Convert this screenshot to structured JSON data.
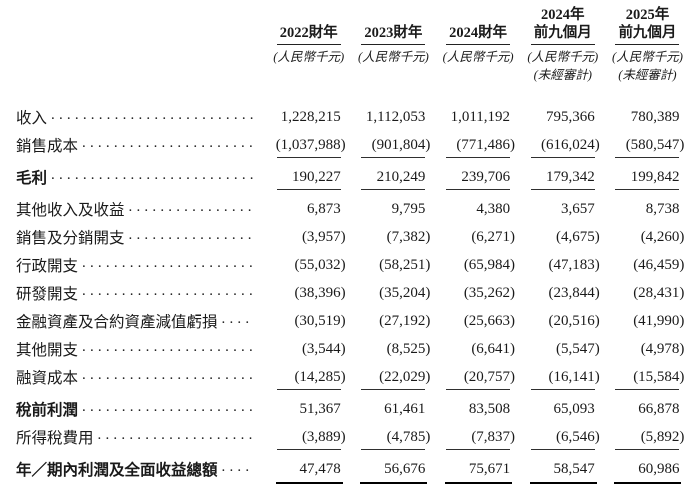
{
  "table": {
    "currency_unit_label": "(人民幣千元)",
    "unaudited_label": "(未經審計)",
    "columns": [
      {
        "period_line1": "",
        "period_line2": "2022財年",
        "unit": "(人民幣千元)",
        "note": ""
      },
      {
        "period_line1": "",
        "period_line2": "2023財年",
        "unit": "(人民幣千元)",
        "note": ""
      },
      {
        "period_line1": "",
        "period_line2": "2024財年",
        "unit": "(人民幣千元)",
        "note": ""
      },
      {
        "period_line1": "2024年",
        "period_line2": "前九個月",
        "unit": "(人民幣千元)",
        "note": "(未經審計)"
      },
      {
        "period_line1": "2025年",
        "period_line2": "前九個月",
        "unit": "(人民幣千元)",
        "note": "(未經審計)"
      }
    ],
    "rows": [
      {
        "label": "收入",
        "bold": false,
        "underline": "none",
        "values": [
          "1,228,215",
          "1,112,053",
          "1,011,192",
          "795,366",
          "780,389"
        ]
      },
      {
        "label": "銷售成本",
        "bold": false,
        "underline": "single",
        "values": [
          "(1,037,988)",
          "(901,804)",
          "(771,486)",
          "(616,024)",
          "(580,547)"
        ]
      },
      {
        "label": "毛利",
        "bold": true,
        "underline": "single",
        "values": [
          "190,227",
          "210,249",
          "239,706",
          "179,342",
          "199,842"
        ]
      },
      {
        "label": "其他收入及收益",
        "bold": false,
        "underline": "none",
        "values": [
          "6,873",
          "9,795",
          "4,380",
          "3,657",
          "8,738"
        ]
      },
      {
        "label": "銷售及分銷開支",
        "bold": false,
        "underline": "none",
        "values": [
          "(3,957)",
          "(7,382)",
          "(6,271)",
          "(4,675)",
          "(4,260)"
        ]
      },
      {
        "label": "行政開支",
        "bold": false,
        "underline": "none",
        "values": [
          "(55,032)",
          "(58,251)",
          "(65,984)",
          "(47,183)",
          "(46,459)"
        ]
      },
      {
        "label": "研發開支",
        "bold": false,
        "underline": "none",
        "values": [
          "(38,396)",
          "(35,204)",
          "(35,262)",
          "(23,844)",
          "(28,431)"
        ]
      },
      {
        "label": "金融資產及合約資產減值虧損",
        "bold": false,
        "underline": "none",
        "values": [
          "(30,519)",
          "(27,192)",
          "(25,663)",
          "(20,516)",
          "(41,990)"
        ]
      },
      {
        "label": "其他開支",
        "bold": false,
        "underline": "none",
        "values": [
          "(3,544)",
          "(8,525)",
          "(6,641)",
          "(5,547)",
          "(4,978)"
        ]
      },
      {
        "label": "融資成本",
        "bold": false,
        "underline": "single",
        "values": [
          "(14,285)",
          "(22,029)",
          "(20,757)",
          "(16,141)",
          "(15,584)"
        ]
      },
      {
        "label": "稅前利潤",
        "bold": true,
        "underline": "none",
        "values": [
          "51,367",
          "61,461",
          "83,508",
          "65,093",
          "66,878"
        ]
      },
      {
        "label": "所得稅費用",
        "bold": false,
        "underline": "single",
        "values": [
          "(3,889)",
          "(4,785)",
          "(7,837)",
          "(6,546)",
          "(5,892)"
        ]
      },
      {
        "label": "年／期內利潤及全面收益總額",
        "bold": true,
        "underline": "double",
        "values": [
          "47,478",
          "56,676",
          "75,671",
          "58,547",
          "60,986"
        ]
      }
    ]
  }
}
